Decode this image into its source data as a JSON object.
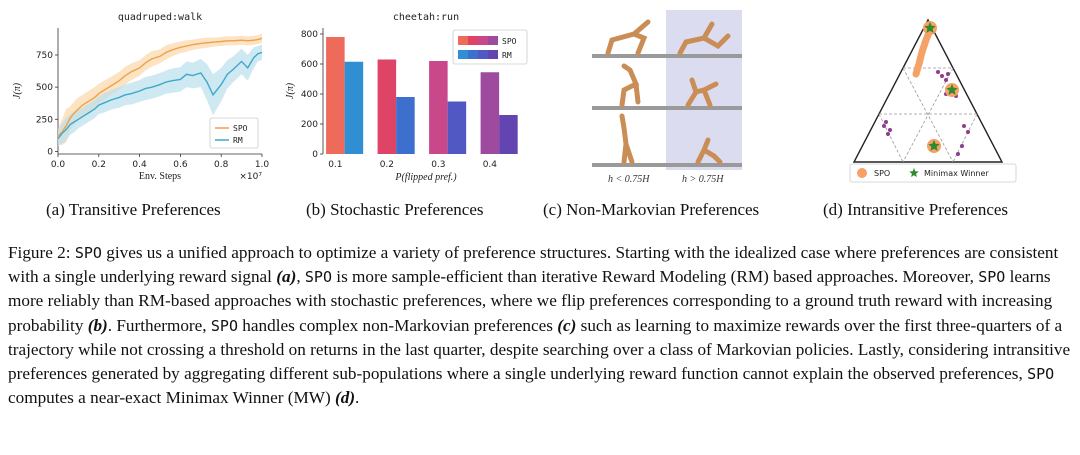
{
  "panels": {
    "a": {
      "caption": "(a) Transitive Preferences",
      "chart_data": {
        "type": "line",
        "title": "quadruped:walk",
        "xlabel": "Env. Steps",
        "ylabel": "J(π)",
        "x_multiplier": "×10⁷",
        "xlim": [
          0,
          1.0
        ],
        "ylim": [
          -20,
          960
        ],
        "xticks": [
          "0.0",
          "0.2",
          "0.4",
          "0.6",
          "0.8",
          "1.0"
        ],
        "yticks": [
          "0",
          "250",
          "500",
          "750"
        ],
        "legend_position": "bottom-right",
        "series": [
          {
            "name": "SPO",
            "color": "#f0a049",
            "band_color": "#fbd7ab",
            "x": [
              0,
              0.02,
              0.04,
              0.06,
              0.08,
              0.1,
              0.12,
              0.15,
              0.18,
              0.2,
              0.23,
              0.26,
              0.3,
              0.33,
              0.36,
              0.4,
              0.43,
              0.46,
              0.5,
              0.53,
              0.56,
              0.6,
              0.63,
              0.66,
              0.7,
              0.73,
              0.76,
              0.8,
              0.83,
              0.86,
              0.9,
              0.93,
              0.96,
              0.98,
              1.0
            ],
            "values": [
              120,
              150,
              200,
              260,
              300,
              330,
              360,
              390,
              420,
              450,
              480,
              510,
              550,
              590,
              620,
              650,
              690,
              720,
              740,
              770,
              790,
              810,
              820,
              830,
              840,
              845,
              850,
              855,
              860,
              860,
              865,
              860,
              865,
              870,
              880
            ],
            "band": [
              60,
              100,
              130,
              90,
              90,
              90,
              80,
              80,
              80,
              75,
              75,
              70,
              70,
              70,
              65,
              60,
              60,
              60,
              55,
              55,
              50,
              45,
              45,
              40,
              40,
              40,
              35,
              35,
              35,
              35,
              35,
              35,
              35,
              35,
              35
            ]
          },
          {
            "name": "RM",
            "color": "#3fa7c9",
            "band_color": "#b9dfec",
            "x": [
              0,
              0.02,
              0.04,
              0.06,
              0.08,
              0.1,
              0.12,
              0.15,
              0.18,
              0.2,
              0.23,
              0.26,
              0.3,
              0.33,
              0.36,
              0.4,
              0.43,
              0.46,
              0.5,
              0.53,
              0.56,
              0.6,
              0.63,
              0.66,
              0.7,
              0.73,
              0.76,
              0.8,
              0.83,
              0.86,
              0.9,
              0.93,
              0.96,
              0.98,
              1.0
            ],
            "values": [
              100,
              140,
              170,
              210,
              230,
              250,
              270,
              300,
              330,
              360,
              380,
              400,
              420,
              440,
              450,
              470,
              490,
              500,
              520,
              540,
              550,
              560,
              600,
              590,
              610,
              540,
              440,
              520,
              600,
              640,
              700,
              650,
              730,
              760,
              770
            ],
            "band": [
              60,
              80,
              90,
              80,
              80,
              70,
              70,
              70,
              70,
              70,
              75,
              75,
              80,
              80,
              85,
              85,
              90,
              90,
              90,
              90,
              95,
              95,
              100,
              100,
              110,
              140,
              160,
              130,
              110,
              100,
              100,
              100,
              80,
              60,
              60
            ]
          }
        ]
      }
    },
    "b": {
      "caption": "(b) Stochastic Preferences",
      "chart_data": {
        "type": "bar",
        "title": "cheetah:run",
        "xlabel": "P(flipped pref.)",
        "ylabel": "J(π)",
        "ylim": [
          0,
          840
        ],
        "yticks": [
          "0",
          "200",
          "400",
          "600",
          "800"
        ],
        "categories": [
          "0.1",
          "0.2",
          "0.3",
          "0.4"
        ],
        "legend_position": "top-right",
        "series": [
          {
            "name": "SPO",
            "values": [
              780,
              630,
              620,
              545
            ],
            "colors": [
              "#ee6a5a",
              "#dd4466",
              "#c8488a",
              "#9e4a9e"
            ]
          },
          {
            "name": "RM",
            "values": [
              615,
              380,
              350,
              260
            ],
            "colors": [
              "#2f8fd2",
              "#3d6fcf",
              "#5158c4",
              "#6345b2"
            ]
          }
        ]
      }
    },
    "c": {
      "caption": "(c) Non-Markovian Preferences",
      "label_left": "h < 0.75H",
      "label_right": "h > 0.75H"
    },
    "d": {
      "caption": "(d) Intransitive Preferences",
      "legend_spo": "SPO",
      "legend_mw": "Minimax Winner",
      "spo_color": "#f6a165",
      "winner_color": "#2e8b2e",
      "dot_color": "#8e3c8e"
    }
  },
  "caption": {
    "label": "Figure 2:",
    "spo": "SPO",
    "s1": " gives us a unified approach to optimize a variety of preference structures. Starting with the idealized case where preferences are consistent with a single underlying reward signal ",
    "ref_a": "(a)",
    "s2": ", ",
    "s3": " is more sample-efficient than iterative Reward Modeling (RM) based approaches. Moreover, ",
    "s4": " learns more reliably than RM-based approaches with stochastic preferences, where we flip preferences corresponding to a ground truth reward with increasing probability ",
    "ref_b": "(b)",
    "s5": ". Furthermore, ",
    "s6": " handles complex non-Markovian preferences ",
    "ref_c": "(c)",
    "s7": " such as learning to maximize rewards over the first three-quarters of a trajectory while not crossing a threshold on returns in the last quarter, despite searching over a class of Markovian policies. Lastly, considering intransitive preferences generated by aggregating different sub-populations where a single underlying reward function cannot explain the observed preferences, ",
    "s8": " computes a near-exact Minimax Winner (MW) ",
    "ref_d": "(d)",
    "s9": "."
  }
}
